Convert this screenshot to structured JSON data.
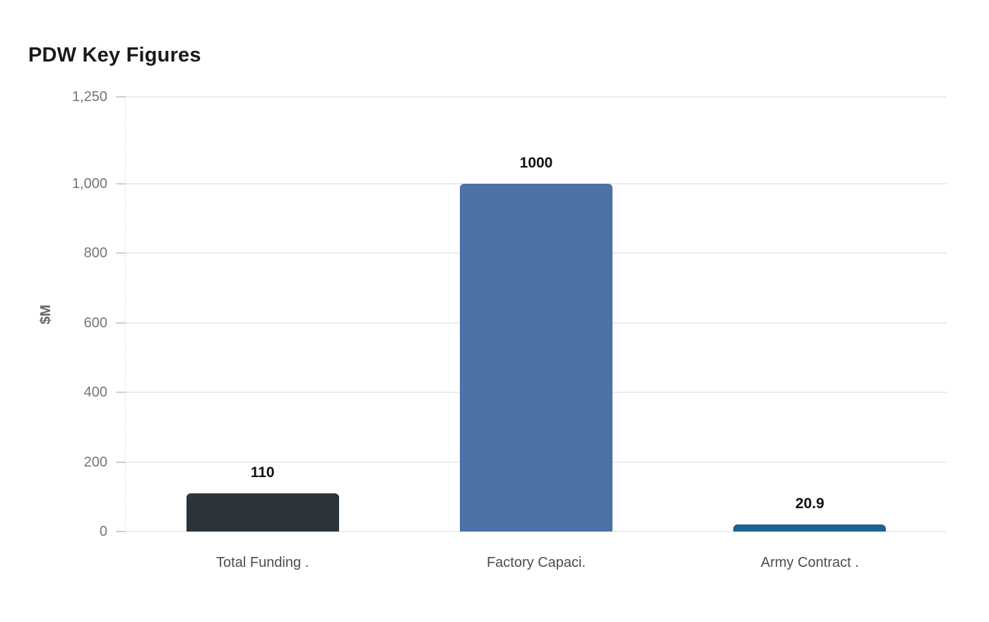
{
  "chart_data": {
    "type": "bar",
    "title": "PDW Key Figures",
    "xlabel": "",
    "ylabel": "$M",
    "categories": [
      "Total Funding .",
      "Factory Capaci.",
      "Army Contract ."
    ],
    "values": [
      110,
      1000,
      20.9
    ],
    "value_labels": [
      "110",
      "1000",
      "20.9"
    ],
    "bar_colors": [
      "#2b333b",
      "#4c72a6",
      "#1e6390"
    ],
    "bar_names": [
      "total-funding",
      "factory-capacity",
      "army-contract"
    ],
    "ylim": [
      0,
      1250
    ],
    "yticks": [
      0,
      200,
      400,
      600,
      800,
      1000,
      1250
    ],
    "ytick_labels": [
      "0",
      "200",
      "400",
      "600",
      "800",
      "1,000",
      "1,250"
    ],
    "grid": true,
    "legend": false,
    "colors": {
      "background": "#ffffff",
      "title": "#1a1a1a",
      "tick_label": "#757575",
      "axis_title": "#666666",
      "category_label": "#4d4d4d",
      "value_label": "#111111",
      "gridline": "#ececec",
      "tick_mark": "#cfcfcf",
      "axis_line": "#d9d9d9"
    }
  }
}
